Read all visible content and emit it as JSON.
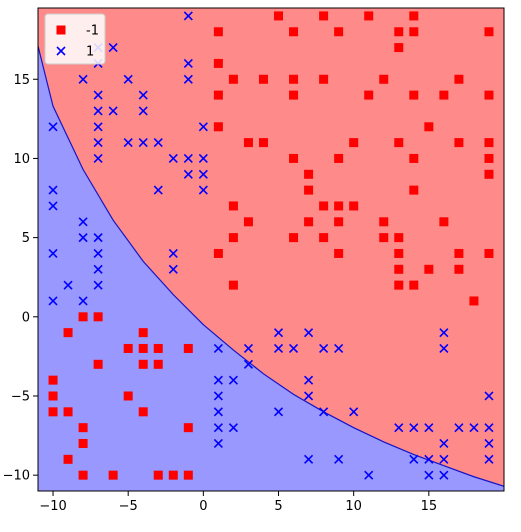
{
  "chart_data": {
    "type": "scatter",
    "title": "",
    "xlabel": "",
    "ylabel": "",
    "xlim": [
      -11,
      20
    ],
    "ylim": [
      -11,
      19.5
    ],
    "x_ticks": [
      -10,
      -5,
      0,
      5,
      10,
      15
    ],
    "y_ticks": [
      -10,
      -5,
      0,
      5,
      10,
      15
    ],
    "x_tick_labels": [
      "−10",
      "−5",
      "0",
      "5",
      "10",
      "15"
    ],
    "y_tick_labels": [
      "−10",
      "−5",
      "0",
      "5",
      "10",
      "15"
    ],
    "grid": false,
    "legend_position": "top-left",
    "decision_regions": {
      "boundary_y_at_x": [
        [
          -11,
          17.1
        ],
        [
          -10,
          13.3
        ],
        [
          -8,
          9.3
        ],
        [
          -6,
          6.1
        ],
        [
          -4,
          3.5
        ],
        [
          -2,
          1.4
        ],
        [
          0,
          -0.5
        ],
        [
          2,
          -2.1
        ],
        [
          4,
          -3.6
        ],
        [
          6,
          -4.9
        ],
        [
          8,
          -6.0
        ],
        [
          10,
          -7.0
        ],
        [
          12,
          -7.9
        ],
        [
          14,
          -8.7
        ],
        [
          16,
          -9.4
        ],
        [
          18,
          -10.1
        ],
        [
          20,
          -10.7
        ]
      ],
      "above_class": "-1",
      "below_class": "1",
      "above_color": "#ff8a8a",
      "below_color": "#9898ff",
      "boundary_color": "#1515c8"
    },
    "series": [
      {
        "name": "-1",
        "marker": "square",
        "color": "#ff0000",
        "points": [
          [
            5,
            19
          ],
          [
            8,
            19
          ],
          [
            11,
            19
          ],
          [
            14,
            19
          ],
          [
            1,
            18
          ],
          [
            6,
            18
          ],
          [
            9,
            18
          ],
          [
            13,
            18
          ],
          [
            14,
            18
          ],
          [
            19,
            18
          ],
          [
            13,
            17
          ],
          [
            1,
            16
          ],
          [
            2,
            15
          ],
          [
            4,
            15
          ],
          [
            6,
            15
          ],
          [
            8,
            15
          ],
          [
            12,
            15
          ],
          [
            17,
            15
          ],
          [
            1,
            14
          ],
          [
            6,
            14
          ],
          [
            11,
            14
          ],
          [
            14,
            14
          ],
          [
            16,
            14
          ],
          [
            19,
            14
          ],
          [
            1,
            12
          ],
          [
            15,
            12
          ],
          [
            3,
            11
          ],
          [
            4,
            11
          ],
          [
            10,
            11
          ],
          [
            13,
            11
          ],
          [
            17,
            11
          ],
          [
            19,
            11
          ],
          [
            6,
            10
          ],
          [
            9,
            10
          ],
          [
            14,
            10
          ],
          [
            19,
            10
          ],
          [
            19,
            9
          ],
          [
            7,
            9
          ],
          [
            7,
            8
          ],
          [
            14,
            8
          ],
          [
            2,
            7
          ],
          [
            8,
            7
          ],
          [
            9,
            7
          ],
          [
            10,
            7
          ],
          [
            3,
            6
          ],
          [
            7,
            6
          ],
          [
            9,
            6
          ],
          [
            12,
            6
          ],
          [
            16,
            6
          ],
          [
            2,
            5
          ],
          [
            6,
            5
          ],
          [
            8,
            5
          ],
          [
            12,
            5
          ],
          [
            13,
            5
          ],
          [
            1,
            4
          ],
          [
            9,
            4
          ],
          [
            13,
            4
          ],
          [
            17,
            4
          ],
          [
            19,
            4
          ],
          [
            13,
            3
          ],
          [
            15,
            3
          ],
          [
            17,
            3
          ],
          [
            2,
            2
          ],
          [
            13,
            2
          ],
          [
            14,
            2
          ],
          [
            18,
            1
          ],
          [
            -8,
            0
          ],
          [
            -7,
            0
          ],
          [
            -9,
            -1
          ],
          [
            -4,
            -1
          ],
          [
            -5,
            -2
          ],
          [
            -4,
            -2
          ],
          [
            -3,
            -2
          ],
          [
            -1,
            -2
          ],
          [
            -7,
            -3
          ],
          [
            -4,
            -3
          ],
          [
            -3,
            -3
          ],
          [
            -10,
            -4
          ],
          [
            -10,
            -5
          ],
          [
            -5,
            -5
          ],
          [
            -10,
            -6
          ],
          [
            -9,
            -6
          ],
          [
            -4,
            -6
          ],
          [
            -8,
            -7
          ],
          [
            -1,
            -7
          ],
          [
            -8,
            -8
          ],
          [
            -9,
            -9
          ],
          [
            -8,
            -10
          ],
          [
            -6,
            -10
          ],
          [
            -3,
            -10
          ],
          [
            -2,
            -10
          ],
          [
            -1,
            -10
          ]
        ]
      },
      {
        "name": "1",
        "marker": "x",
        "color": "#0000ff",
        "points": [
          [
            -1,
            19
          ],
          [
            -7,
            17
          ],
          [
            -6,
            17
          ],
          [
            -7,
            16
          ],
          [
            -1,
            16
          ],
          [
            -8,
            15
          ],
          [
            -5,
            15
          ],
          [
            -1,
            15
          ],
          [
            -7,
            14
          ],
          [
            -4,
            14
          ],
          [
            -7,
            13
          ],
          [
            -6,
            13
          ],
          [
            -4,
            13
          ],
          [
            -10,
            12
          ],
          [
            -7,
            12
          ],
          [
            0,
            12
          ],
          [
            -7,
            11
          ],
          [
            -5,
            11
          ],
          [
            -4,
            11
          ],
          [
            -3,
            11
          ],
          [
            -7,
            10
          ],
          [
            -2,
            10
          ],
          [
            -1,
            10
          ],
          [
            0,
            10
          ],
          [
            -1,
            9
          ],
          [
            0,
            9
          ],
          [
            -10,
            8
          ],
          [
            -3,
            8
          ],
          [
            0,
            8
          ],
          [
            -10,
            7
          ],
          [
            -8,
            6
          ],
          [
            -8,
            5
          ],
          [
            -7,
            5
          ],
          [
            -10,
            4
          ],
          [
            -7,
            4
          ],
          [
            -2,
            4
          ],
          [
            -7,
            3
          ],
          [
            -2,
            3
          ],
          [
            -9,
            2
          ],
          [
            -7,
            2
          ],
          [
            -10,
            1
          ],
          [
            -8,
            1
          ],
          [
            5,
            -1
          ],
          [
            7,
            -1
          ],
          [
            16,
            -1
          ],
          [
            1,
            -2
          ],
          [
            3,
            -2
          ],
          [
            5,
            -2
          ],
          [
            6,
            -2
          ],
          [
            8,
            -2
          ],
          [
            9,
            -2
          ],
          [
            16,
            -2
          ],
          [
            3,
            -3
          ],
          [
            1,
            -4
          ],
          [
            2,
            -4
          ],
          [
            7,
            -4
          ],
          [
            1,
            -5
          ],
          [
            7,
            -5
          ],
          [
            19,
            -5
          ],
          [
            1,
            -6
          ],
          [
            5,
            -6
          ],
          [
            8,
            -6
          ],
          [
            10,
            -6
          ],
          [
            1,
            -7
          ],
          [
            2,
            -7
          ],
          [
            13,
            -7
          ],
          [
            14,
            -7
          ],
          [
            15,
            -7
          ],
          [
            17,
            -7
          ],
          [
            18,
            -7
          ],
          [
            19,
            -7
          ],
          [
            1,
            -8
          ],
          [
            16,
            -8
          ],
          [
            19,
            -8
          ],
          [
            7,
            -9
          ],
          [
            9,
            -9
          ],
          [
            14,
            -9
          ],
          [
            15,
            -9
          ],
          [
            16,
            -9
          ],
          [
            19,
            -9
          ],
          [
            11,
            -10
          ],
          [
            15,
            -10
          ],
          [
            16,
            -10
          ]
        ]
      }
    ]
  }
}
